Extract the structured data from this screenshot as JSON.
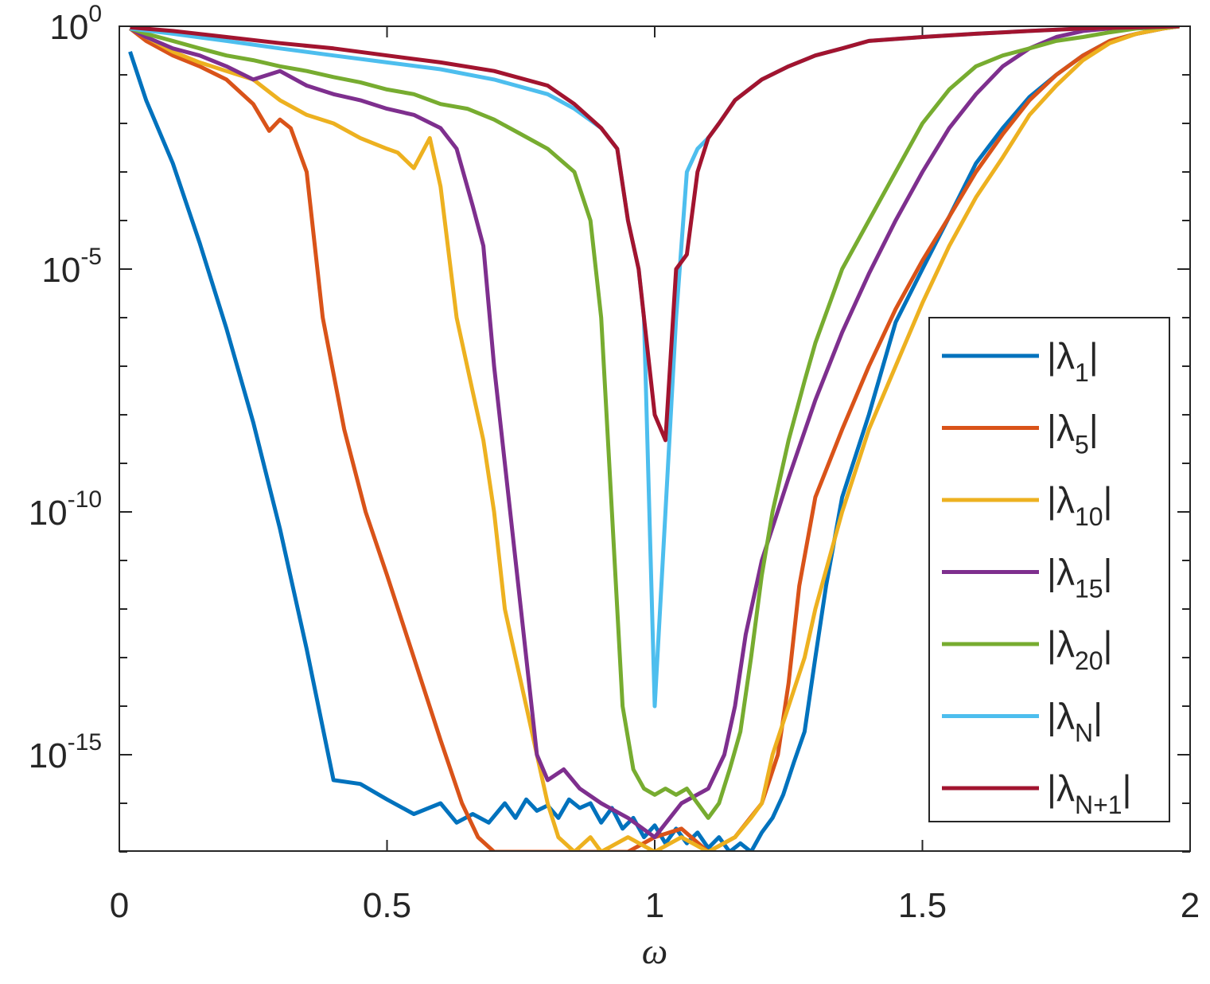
{
  "chart_data": {
    "type": "line",
    "xlabel": "ω",
    "ylabel": "",
    "xscale": "linear",
    "yscale": "log",
    "xlim": [
      0,
      2
    ],
    "ylim": [
      1e-17,
      1
    ],
    "xticks": [
      0,
      0.5,
      1,
      1.5,
      2
    ],
    "xtick_labels": [
      "0",
      "0.5",
      "1",
      "1.5",
      "2"
    ],
    "yticks": [
      {
        "base": "10",
        "exp": "0",
        "value": 1
      },
      {
        "base": "10",
        "exp": "-5",
        "value": 1e-05
      },
      {
        "base": "10",
        "exp": "-10",
        "value": 1e-10
      },
      {
        "base": "10",
        "exp": "-15",
        "value": 1e-15
      }
    ],
    "grid": false,
    "legend_position": "right",
    "series": [
      {
        "name": "|λ1|",
        "label_base": "|λ",
        "label_sub": "1",
        "label_end": "|",
        "color": "#0072BD",
        "x": [
          0.02,
          0.05,
          0.1,
          0.15,
          0.2,
          0.25,
          0.3,
          0.35,
          0.4,
          0.45,
          0.5,
          0.55,
          0.6,
          0.63,
          0.66,
          0.69,
          0.72,
          0.74,
          0.76,
          0.78,
          0.8,
          0.82,
          0.84,
          0.86,
          0.88,
          0.9,
          0.92,
          0.94,
          0.96,
          0.98,
          1.0,
          1.02,
          1.04,
          1.06,
          1.08,
          1.1,
          1.12,
          1.14,
          1.16,
          1.18,
          1.2,
          1.22,
          1.24,
          1.26,
          1.28,
          1.3,
          1.32,
          1.35,
          1.4,
          1.45,
          1.5,
          1.55,
          1.6,
          1.65,
          1.7,
          1.75,
          1.8,
          1.85,
          1.9,
          1.95,
          1.98
        ],
        "y": [
          0.3,
          0.03,
          0.0015,
          3.5e-05,
          6e-07,
          7e-09,
          4.5e-11,
          1.5e-13,
          3e-16,
          2.5e-16,
          1.2e-16,
          6e-17,
          1e-16,
          4e-17,
          6e-17,
          4e-17,
          1e-16,
          5e-17,
          1.2e-16,
          7e-17,
          9e-17,
          5e-17,
          1.2e-16,
          8e-17,
          1e-16,
          4e-17,
          8e-17,
          3e-17,
          5e-17,
          2e-17,
          3.5e-17,
          1.5e-17,
          3e-17,
          1.5e-17,
          2.5e-17,
          1.2e-17,
          2e-17,
          1e-17,
          1.5e-17,
          1e-17,
          2.5e-17,
          5e-17,
          1.5e-16,
          7e-16,
          3e-15,
          1e-13,
          3e-12,
          2e-10,
          1e-08,
          8e-07,
          1e-05,
          0.00012,
          0.0015,
          0.008,
          0.035,
          0.1,
          0.25,
          0.5,
          0.7,
          0.9,
          1
        ]
      },
      {
        "name": "|λ5|",
        "label_base": "|λ",
        "label_sub": "5",
        "label_end": "|",
        "color": "#D95319",
        "x": [
          0.02,
          0.05,
          0.1,
          0.15,
          0.2,
          0.25,
          0.28,
          0.3,
          0.32,
          0.35,
          0.38,
          0.42,
          0.46,
          0.5,
          0.55,
          0.6,
          0.64,
          0.67,
          0.7,
          0.72,
          0.75,
          0.78,
          0.82,
          0.86,
          0.9,
          0.95,
          1.0,
          1.05,
          1.1,
          1.15,
          1.2,
          1.23,
          1.25,
          1.27,
          1.3,
          1.35,
          1.4,
          1.45,
          1.5,
          1.55,
          1.6,
          1.65,
          1.7,
          1.75,
          1.8,
          1.85,
          1.9,
          1.95,
          1.98
        ],
        "y": [
          0.9,
          0.5,
          0.25,
          0.15,
          0.08,
          0.025,
          0.007,
          0.012,
          0.008,
          0.001,
          1e-06,
          5e-09,
          1e-10,
          5e-12,
          1e-13,
          2e-15,
          1e-16,
          2e-17,
          1e-17,
          8e-18,
          5e-18,
          1e-17,
          5e-18,
          1e-17,
          4e-18,
          1e-17,
          2e-17,
          3e-17,
          1e-17,
          2e-17,
          1e-16,
          1e-15,
          3e-14,
          3e-12,
          2e-10,
          5e-09,
          1e-07,
          1.5e-06,
          1.5e-05,
          0.00012,
          0.001,
          0.006,
          0.03,
          0.1,
          0.25,
          0.5,
          0.7,
          0.9,
          1
        ]
      },
      {
        "name": "|λ10|",
        "label_base": "|λ",
        "label_sub": "10",
        "label_end": "|",
        "color": "#EDB120",
        "x": [
          0.02,
          0.05,
          0.1,
          0.15,
          0.2,
          0.25,
          0.3,
          0.35,
          0.4,
          0.45,
          0.5,
          0.52,
          0.55,
          0.58,
          0.6,
          0.63,
          0.66,
          0.68,
          0.7,
          0.72,
          0.74,
          0.76,
          0.78,
          0.8,
          0.82,
          0.85,
          0.88,
          0.9,
          0.95,
          1.0,
          1.05,
          1.1,
          1.15,
          1.18,
          1.2,
          1.22,
          1.25,
          1.28,
          1.3,
          1.35,
          1.4,
          1.45,
          1.5,
          1.55,
          1.6,
          1.65,
          1.7,
          1.75,
          1.8,
          1.85,
          1.9,
          1.95,
          1.98
        ],
        "y": [
          0.9,
          0.6,
          0.3,
          0.18,
          0.12,
          0.08,
          0.03,
          0.015,
          0.01,
          0.005,
          0.003,
          0.0025,
          0.0012,
          0.005,
          0.0005,
          1e-06,
          3e-08,
          3e-09,
          1e-10,
          1e-12,
          1e-13,
          1e-14,
          1e-15,
          1e-16,
          2e-17,
          1e-17,
          2e-17,
          1e-17,
          2e-17,
          1e-17,
          2e-17,
          1e-17,
          2e-17,
          5e-17,
          1e-16,
          1e-15,
          1e-14,
          1e-13,
          1e-12,
          1e-10,
          5e-09,
          1e-07,
          2e-06,
          3e-05,
          0.0003,
          0.002,
          0.015,
          0.06,
          0.2,
          0.45,
          0.7,
          0.9,
          1
        ]
      },
      {
        "name": "|λ15|",
        "label_base": "|λ",
        "label_sub": "15",
        "label_end": "|",
        "color": "#7E2F8E",
        "x": [
          0.02,
          0.05,
          0.1,
          0.15,
          0.2,
          0.25,
          0.3,
          0.35,
          0.4,
          0.45,
          0.5,
          0.55,
          0.6,
          0.63,
          0.66,
          0.68,
          0.7,
          0.72,
          0.75,
          0.78,
          0.8,
          0.83,
          0.86,
          0.9,
          0.95,
          1.0,
          1.05,
          1.1,
          1.13,
          1.15,
          1.17,
          1.2,
          1.25,
          1.3,
          1.35,
          1.4,
          1.45,
          1.5,
          1.55,
          1.6,
          1.65,
          1.7,
          1.75,
          1.8,
          1.85,
          1.9,
          1.95,
          1.98
        ],
        "y": [
          0.9,
          0.6,
          0.35,
          0.25,
          0.15,
          0.08,
          0.12,
          0.06,
          0.04,
          0.03,
          0.02,
          0.015,
          0.008,
          0.003,
          0.0002,
          3e-05,
          1e-07,
          1e-09,
          1e-12,
          1e-15,
          3e-16,
          5e-16,
          2e-16,
          1e-16,
          5e-17,
          2e-17,
          1e-16,
          2e-16,
          1e-15,
          1e-14,
          3e-13,
          1e-11,
          5e-10,
          2e-08,
          5e-07,
          8e-06,
          0.0001,
          0.001,
          0.008,
          0.04,
          0.15,
          0.35,
          0.6,
          0.8,
          0.9,
          0.95,
          1,
          1
        ]
      },
      {
        "name": "|λ20|",
        "label_base": "|λ",
        "label_sub": "20",
        "label_end": "|",
        "color": "#77AC30",
        "x": [
          0.02,
          0.05,
          0.1,
          0.15,
          0.2,
          0.25,
          0.3,
          0.35,
          0.4,
          0.45,
          0.5,
          0.55,
          0.6,
          0.65,
          0.7,
          0.75,
          0.8,
          0.85,
          0.88,
          0.9,
          0.92,
          0.94,
          0.96,
          0.98,
          1.0,
          1.02,
          1.04,
          1.06,
          1.08,
          1.1,
          1.12,
          1.14,
          1.16,
          1.18,
          1.2,
          1.22,
          1.25,
          1.28,
          1.3,
          1.35,
          1.4,
          1.45,
          1.5,
          1.55,
          1.6,
          1.65,
          1.7,
          1.75,
          1.8,
          1.85,
          1.9,
          1.95,
          1.98
        ],
        "y": [
          0.9,
          0.7,
          0.5,
          0.35,
          0.25,
          0.2,
          0.15,
          0.12,
          0.09,
          0.07,
          0.05,
          0.04,
          0.025,
          0.02,
          0.012,
          0.006,
          0.003,
          0.001,
          0.0001,
          1e-06,
          1e-10,
          1e-14,
          5e-16,
          2e-16,
          1.5e-16,
          2e-16,
          1.5e-16,
          2e-16,
          1e-16,
          5e-17,
          1e-16,
          5e-16,
          3e-15,
          1e-13,
          5e-12,
          1e-10,
          3e-09,
          5e-08,
          3e-07,
          1e-05,
          0.0001,
          0.001,
          0.01,
          0.05,
          0.15,
          0.25,
          0.35,
          0.5,
          0.6,
          0.75,
          0.9,
          0.95,
          1
        ]
      },
      {
        "name": "|λN|",
        "label_base": "|λ",
        "label_sub": "N",
        "label_end": "|",
        "color": "#4DBEEE",
        "x": [
          0.02,
          0.1,
          0.2,
          0.3,
          0.4,
          0.5,
          0.6,
          0.7,
          0.8,
          0.85,
          0.9,
          0.93,
          0.95,
          0.97,
          0.98,
          1.0,
          1.02,
          1.04,
          1.06,
          1.08,
          1.1,
          1.12,
          1.15,
          1.2,
          1.25,
          1.3,
          1.35,
          1.4,
          1.5,
          1.6,
          1.7,
          1.8,
          1.9,
          1.98
        ],
        "y": [
          0.9,
          0.7,
          0.5,
          0.35,
          0.25,
          0.18,
          0.13,
          0.08,
          0.04,
          0.02,
          0.008,
          0.003,
          0.0001,
          1e-05,
          1e-06,
          1e-14,
          1e-10,
          1e-06,
          0.001,
          0.003,
          0.005,
          0.01,
          0.03,
          0.08,
          0.15,
          0.25,
          0.35,
          0.5,
          0.6,
          0.7,
          0.8,
          0.9,
          0.95,
          1
        ]
      },
      {
        "name": "|λN+1|",
        "label_base": "|λ",
        "label_sub": "N+1",
        "label_end": "|",
        "color": "#A2142F",
        "x": [
          0.02,
          0.1,
          0.2,
          0.3,
          0.4,
          0.5,
          0.6,
          0.7,
          0.8,
          0.85,
          0.9,
          0.93,
          0.95,
          0.97,
          0.98,
          1.0,
          1.02,
          1.04,
          1.06,
          1.08,
          1.1,
          1.12,
          1.15,
          1.2,
          1.25,
          1.3,
          1.35,
          1.4,
          1.5,
          1.6,
          1.7,
          1.8,
          1.9,
          1.98
        ],
        "y": [
          0.95,
          0.8,
          0.6,
          0.45,
          0.35,
          0.25,
          0.18,
          0.12,
          0.06,
          0.025,
          0.008,
          0.003,
          0.0001,
          1e-05,
          1e-06,
          1e-08,
          3e-09,
          1e-05,
          2e-05,
          0.001,
          0.005,
          0.01,
          0.03,
          0.08,
          0.15,
          0.25,
          0.35,
          0.5,
          0.6,
          0.7,
          0.8,
          0.9,
          0.95,
          1
        ]
      }
    ]
  }
}
